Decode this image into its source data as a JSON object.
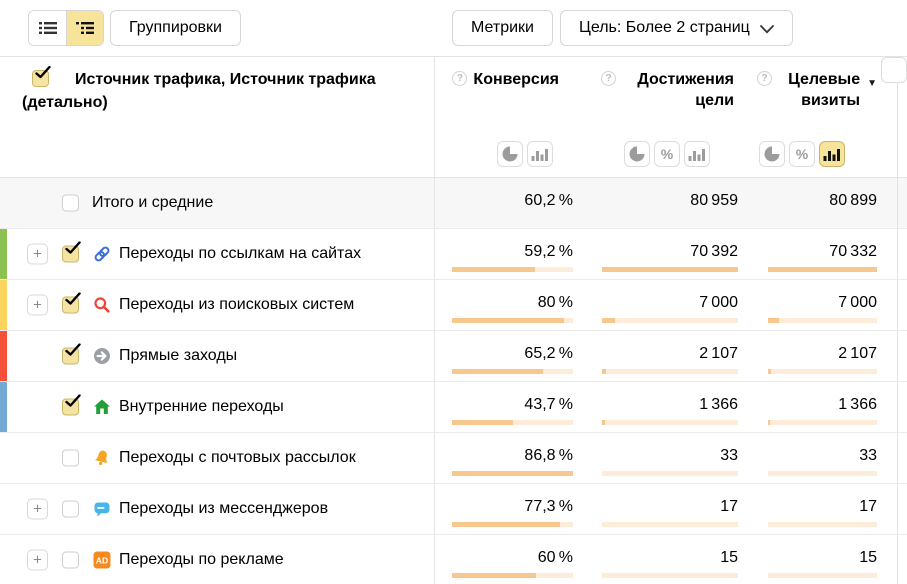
{
  "palette": {
    "accent_yellow": "#f7e49b",
    "accent_border": "#ccb468",
    "checkbox_yellow": "#f5e3a1",
    "checkbox_border": "#c9b66a",
    "bar_fill": "#f8c78f",
    "bar_track": "#fcecd9",
    "icon_link": "#3a6fd8",
    "icon_search": "#ef4634",
    "icon_direct": "#9aa0a6",
    "icon_home": "#22a038",
    "icon_bell": "#f6a623",
    "icon_messenger": "#44b7e8",
    "icon_ad": "#f68a1e"
  },
  "icons": {
    "percent": "%",
    "plus": "+",
    "question": "?",
    "sort_desc": "▼"
  },
  "toolbar": {
    "groupings": "Группировки",
    "metrics": "Метрики",
    "goal": "Цель: Более 2 страниц",
    "view_toggle": {
      "list_active": false,
      "tree_active": true
    }
  },
  "table": {
    "dimension_header": "Источник трафика, Источник трафика (детально)",
    "header_checked": true,
    "columns": [
      {
        "label": "Конверсия",
        "views": [
          {
            "type": "pie",
            "active": false
          },
          {
            "type": "bars",
            "active": false
          }
        ]
      },
      {
        "label": "Достижения цели",
        "views": [
          {
            "type": "pie",
            "active": false
          },
          {
            "type": "percent",
            "active": false
          },
          {
            "type": "bars",
            "active": false
          }
        ]
      },
      {
        "label": "Целевые визиты",
        "sorted": "desc",
        "views": [
          {
            "type": "pie",
            "active": false
          },
          {
            "type": "percent",
            "active": false
          },
          {
            "type": "bars",
            "active": true
          }
        ]
      }
    ],
    "rows": [
      {
        "label": "Итого и средние",
        "checked": false,
        "values": [
          "60,2 %",
          "80 959",
          "80 899"
        ]
      },
      {
        "label": "Переходы по ссылкам на сайтах",
        "icon": "link",
        "stripe": "#8cc152",
        "expandable": true,
        "checked": true,
        "values": [
          "59,2 %",
          "70 392",
          "70 332"
        ],
        "bars": [
          68.2,
          100,
          100
        ]
      },
      {
        "label": "Переходы из поисковых систем",
        "icon": "search",
        "stripe": "#fcd55e",
        "expandable": true,
        "checked": true,
        "values": [
          "80 %",
          "7 000",
          "7 000"
        ],
        "bars": [
          92.2,
          9.9,
          10
        ]
      },
      {
        "label": "Прямые заходы",
        "icon": "direct-arrow",
        "stripe": "#f4503a",
        "expandable": false,
        "checked": true,
        "values": [
          "65,2 %",
          "2 107",
          "2 107"
        ],
        "bars": [
          75.1,
          3,
          3
        ]
      },
      {
        "label": "Внутренние переходы",
        "icon": "home",
        "stripe": "#73a9d3",
        "expandable": false,
        "checked": true,
        "values": [
          "43,7 %",
          "1 366",
          "1 366"
        ],
        "bars": [
          50.3,
          1.9,
          1.9
        ]
      },
      {
        "label": "Переходы с почтовых рассылок",
        "icon": "bell",
        "expandable": false,
        "checked": false,
        "values": [
          "86,8 %",
          "33",
          "33"
        ],
        "bars": [
          100,
          0.05,
          0.05
        ]
      },
      {
        "label": "Переходы из мессенджеров",
        "icon": "messenger",
        "expandable": true,
        "checked": false,
        "values": [
          "77,3 %",
          "17",
          "17"
        ],
        "bars": [
          89.1,
          0.02,
          0.02
        ]
      },
      {
        "label": "Переходы по рекламе",
        "icon": "ad",
        "expandable": true,
        "checked": false,
        "values": [
          "60 %",
          "15",
          "15"
        ],
        "bars": [
          69.1,
          0.02,
          0.02
        ]
      }
    ]
  }
}
